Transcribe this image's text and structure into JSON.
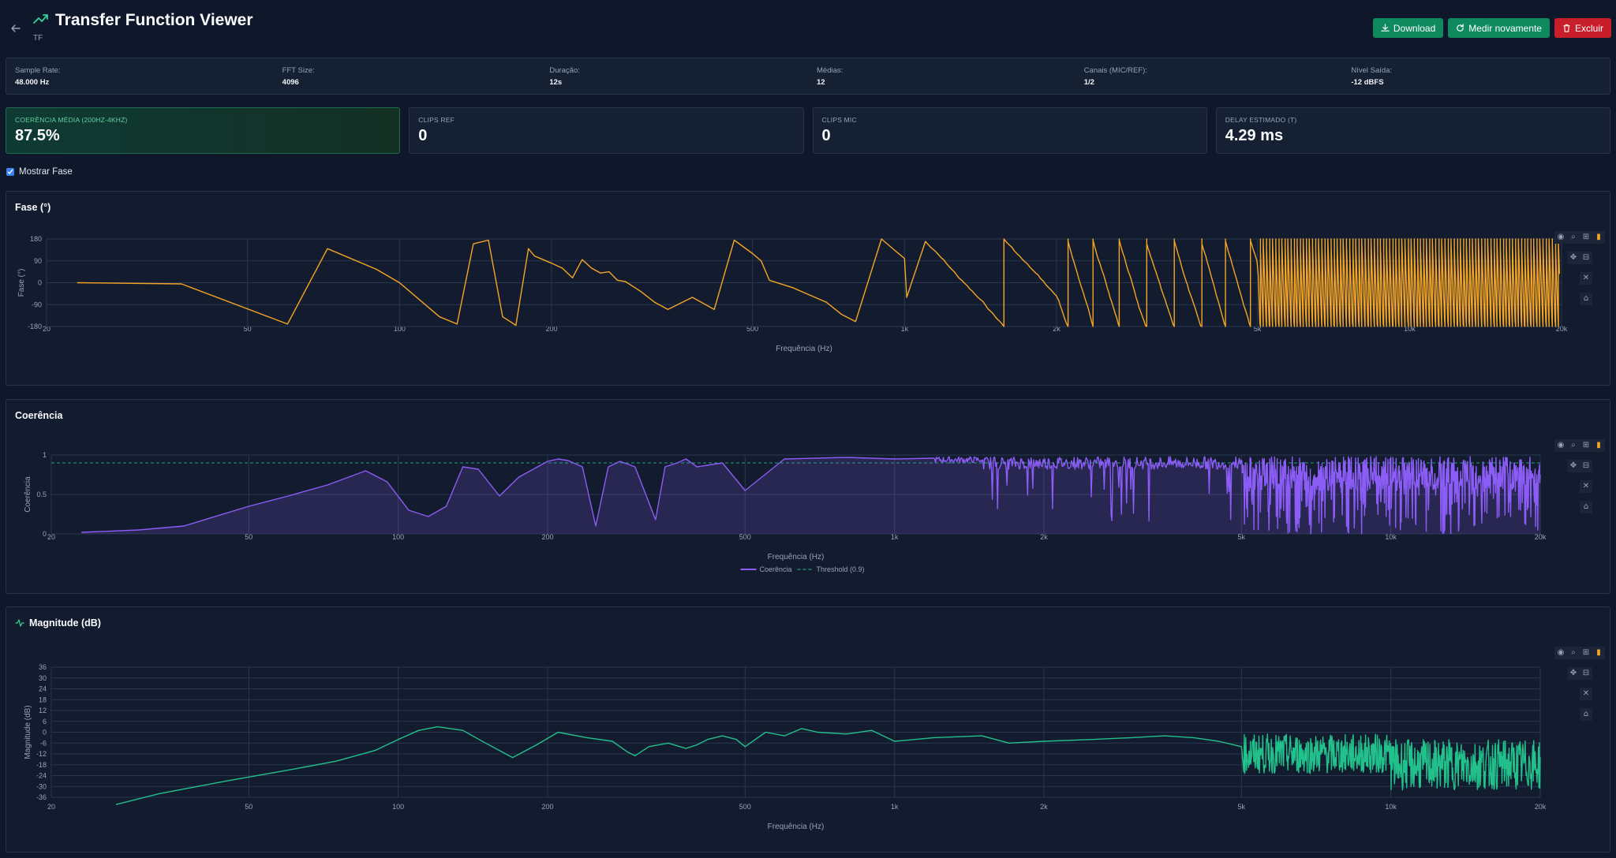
{
  "header": {
    "title": "Transfer Function Viewer",
    "subtitle": "TF",
    "buttons": {
      "download": "Download",
      "remeasure": "Medir novamente",
      "delete": "Excluir"
    }
  },
  "info": [
    {
      "label": "Sample Rate:",
      "value": "48.000 Hz"
    },
    {
      "label": "FFT Size:",
      "value": "4096"
    },
    {
      "label": "Duração:",
      "value": "12s"
    },
    {
      "label": "Médias:",
      "value": "12"
    },
    {
      "label": "Canais (MIC/REF):",
      "value": "1/2"
    },
    {
      "label": "Nível Saída:",
      "value": "-12 dBFS"
    }
  ],
  "cards": [
    {
      "label": "COERÊNCIA MÉDIA (200HZ-4KHZ)",
      "value": "87.5%"
    },
    {
      "label": "CLIPS REF",
      "value": "0"
    },
    {
      "label": "CLIPS MIC",
      "value": "0"
    },
    {
      "label": "DELAY ESTIMADO (T)",
      "value": "4.29 ms"
    }
  ],
  "toggle": {
    "label": "Mostrar Fase",
    "checked": true
  },
  "colors": {
    "phase": "#f5a524",
    "coherence": "#8b5cf6",
    "magnitude": "#22c08a",
    "threshold": "#22c08a",
    "green_btn": "#0f8a5f",
    "red_btn": "#c81e2b"
  },
  "icons": [
    "arrow-left-icon",
    "trending-up-icon",
    "download-icon",
    "refresh-icon",
    "trash-icon",
    "activity-icon",
    "camera-icon",
    "zoom-icon",
    "zoom-in-icon",
    "zoom-out-icon",
    "pan-icon",
    "autoscale-icon",
    "reset-icon",
    "plotly-logo-icon"
  ],
  "chart_data": [
    {
      "type": "line",
      "title": "Fase (°)",
      "xlabel": "Frequência (Hz)",
      "ylabel": "Fase (°)",
      "xscale": "log",
      "xlim": [
        20,
        20000
      ],
      "ylim": [
        -180,
        180
      ],
      "xticks": [
        "20",
        "50",
        "100",
        "200",
        "500",
        "1k",
        "2k",
        "5k",
        "10k",
        "20k"
      ],
      "yticks": [
        "180",
        "90",
        "0",
        "-90",
        "-180"
      ],
      "grid": true,
      "series": [
        {
          "color": "#f5a524",
          "x": [
            23,
            37,
            60,
            72,
            90,
            100,
            120,
            130,
            140,
            150,
            160,
            170,
            180,
            185,
            190,
            200,
            210,
            220,
            230,
            240,
            250,
            260,
            270,
            280,
            300,
            320,
            340,
            380,
            420,
            460,
            500,
            520,
            540,
            600,
            700,
            750,
            800,
            900,
            960,
            1000,
            1010,
            1100
          ],
          "y": [
            0,
            -5,
            -170,
            140,
            55,
            0,
            -140,
            -170,
            160,
            175,
            -140,
            -175,
            140,
            110,
            100,
            80,
            60,
            20,
            95,
            60,
            40,
            45,
            10,
            5,
            -35,
            -80,
            -110,
            -60,
            -110,
            175,
            120,
            90,
            10,
            -20,
            -80,
            -130,
            -160,
            180,
            130,
            100,
            -60,
            170
          ],
          "note_dense_wrapping_from_hz": 1100
        }
      ]
    },
    {
      "type": "area",
      "title": "Coerência",
      "xlabel": "Frequência (Hz)",
      "ylabel": "Coerência",
      "xscale": "log",
      "xlim": [
        20,
        20000
      ],
      "ylim": [
        0,
        1
      ],
      "xticks": [
        "20",
        "50",
        "100",
        "200",
        "500",
        "1k",
        "2k",
        "5k",
        "10k",
        "20k"
      ],
      "yticks": [
        "1",
        "0.5",
        "0"
      ],
      "grid": true,
      "legend": "bottom-center",
      "series": [
        {
          "name": "Coerência",
          "color": "#8b5cf6",
          "x": [
            23,
            30,
            37,
            50,
            60,
            72,
            86,
            95,
            105,
            115,
            125,
            135,
            145,
            160,
            175,
            200,
            210,
            220,
            235,
            250,
            265,
            280,
            300,
            330,
            345,
            365,
            380,
            400,
            450,
            500,
            600,
            800,
            1000,
            1200
          ],
          "y": [
            0.02,
            0.05,
            0.1,
            0.35,
            0.48,
            0.62,
            0.8,
            0.66,
            0.3,
            0.22,
            0.35,
            0.85,
            0.82,
            0.48,
            0.72,
            0.92,
            0.95,
            0.93,
            0.85,
            0.1,
            0.85,
            0.92,
            0.85,
            0.18,
            0.85,
            0.9,
            0.95,
            0.85,
            0.9,
            0.55,
            0.95,
            0.97,
            0.95,
            0.96
          ]
        },
        {
          "name": "Threshold (0.9)",
          "color": "#22c08a",
          "x": [
            20,
            20000
          ],
          "y": [
            0.9,
            0.9
          ]
        }
      ]
    },
    {
      "type": "line",
      "title": "Magnitude (dB)",
      "xlabel": "Frequência (Hz)",
      "ylabel": "Magnitude (dB)",
      "xscale": "log",
      "xlim": [
        20,
        20000
      ],
      "ylim": [
        -36,
        36
      ],
      "xticks": [
        "20",
        "50",
        "100",
        "200",
        "500",
        "1k",
        "2k",
        "5k",
        "10k",
        "20k"
      ],
      "yticks": [
        "36",
        "30",
        "24",
        "18",
        "12",
        "6",
        "0",
        "-6",
        "-12",
        "-18",
        "-24",
        "-30",
        "-36"
      ],
      "grid": true,
      "series": [
        {
          "color": "#22c08a",
          "x": [
            27,
            33,
            45,
            60,
            75,
            90,
            100,
            110,
            120,
            135,
            150,
            170,
            190,
            210,
            240,
            270,
            290,
            300,
            320,
            350,
            380,
            400,
            420,
            450,
            480,
            500,
            550,
            600,
            650,
            700,
            800,
            900,
            1000,
            1200,
            1500,
            1700,
            2000,
            2500,
            3000,
            3500,
            4000,
            4500,
            5000
          ],
          "y": [
            -40,
            -34,
            -27,
            -21,
            -16,
            -10,
            -4,
            1,
            3,
            1,
            -6,
            -14,
            -7,
            0,
            -3,
            -5,
            -11,
            -13,
            -8,
            -6,
            -9,
            -7,
            -4,
            -2,
            -4,
            -8,
            0,
            -2,
            2,
            0,
            -1,
            1,
            -5,
            -3,
            -2,
            -6,
            -5,
            -4,
            -3,
            -2,
            -3,
            -5,
            -8
          ],
          "note_dense_noise_from_hz": 5000
        }
      ]
    }
  ]
}
